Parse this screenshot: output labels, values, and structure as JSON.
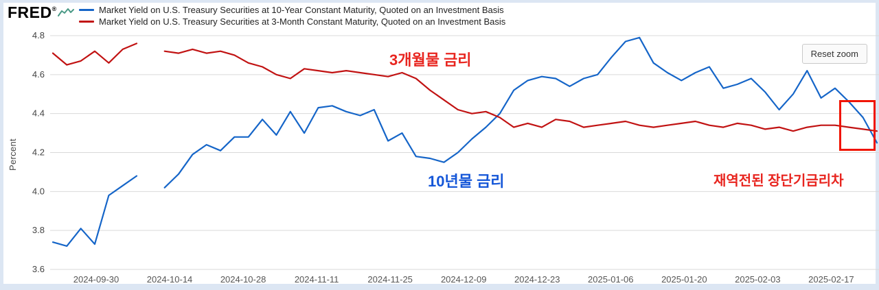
{
  "logo": {
    "text": "FRED",
    "registered": "®"
  },
  "legend": {
    "items": [
      {
        "label": "Market Yield on U.S. Treasury Securities at 10-Year Constant Maturity, Quoted on an Investment Basis",
        "color": "#1565c8"
      },
      {
        "label": "Market Yield on U.S. Treasury Securities at 3-Month Constant Maturity, Quoted on an Investment Basis",
        "color": "#c11212"
      }
    ]
  },
  "controls": {
    "reset_zoom_label": "Reset zoom"
  },
  "annotations": {
    "three_month": {
      "text": "3개월물 금리",
      "color": "#e8251f"
    },
    "ten_year": {
      "text": "10년물 금리",
      "color": "#1456d8"
    },
    "reinverted": {
      "text": "재역전된 장단기금리차",
      "color": "#e8251f"
    },
    "highlight_color": "#f01400"
  },
  "chart_data": {
    "type": "line",
    "title": "",
    "xlabel": "",
    "ylabel": "Percent",
    "ylim": [
      3.6,
      4.8
    ],
    "yticks": [
      3.6,
      3.8,
      4.0,
      4.2,
      4.4,
      4.6,
      4.8
    ],
    "grid": "horizontal",
    "legend_position": "top-left",
    "x_tick_labels": [
      "2024-09-30",
      "2024-10-14",
      "2024-10-28",
      "2024-11-11",
      "2024-11-25",
      "2024-12-09",
      "2024-12-23",
      "2025-01-06",
      "2025-01-20",
      "2025-02-03",
      "2025-02-17"
    ],
    "series": [
      {
        "name": "Market Yield on U.S. Treasury Securities at 10-Year Constant Maturity, Quoted on an Investment Basis",
        "color": "#1565c8",
        "values": [
          3.74,
          3.72,
          3.81,
          3.73,
          3.98,
          4.03,
          4.08,
          null,
          4.02,
          4.09,
          4.19,
          4.24,
          4.21,
          4.28,
          4.28,
          4.37,
          4.29,
          4.41,
          4.3,
          4.43,
          4.44,
          4.41,
          4.39,
          4.42,
          4.26,
          4.3,
          4.18,
          4.17,
          4.15,
          4.2,
          4.27,
          4.33,
          4.4,
          4.52,
          4.57,
          4.59,
          4.58,
          4.54,
          4.58,
          4.6,
          4.69,
          4.77,
          4.79,
          4.66,
          4.61,
          4.57,
          4.61,
          4.64,
          4.53,
          4.55,
          4.58,
          4.51,
          4.42,
          4.5,
          4.62,
          4.48,
          4.53,
          4.46,
          4.38,
          4.25
        ]
      },
      {
        "name": "Market Yield on U.S. Treasury Securities at 3-Month Constant Maturity, Quoted on an Investment Basis",
        "color": "#c11212",
        "values": [
          4.71,
          4.65,
          4.67,
          4.72,
          4.66,
          4.73,
          4.76,
          null,
          4.72,
          4.71,
          4.73,
          4.71,
          4.72,
          4.7,
          4.66,
          4.64,
          4.6,
          4.58,
          4.63,
          4.62,
          4.61,
          4.62,
          4.61,
          4.6,
          4.59,
          4.61,
          4.58,
          4.52,
          4.47,
          4.42,
          4.4,
          4.41,
          4.38,
          4.33,
          4.35,
          4.33,
          4.37,
          4.36,
          4.33,
          4.34,
          4.35,
          4.36,
          4.34,
          4.33,
          4.34,
          4.35,
          4.36,
          4.34,
          4.33,
          4.35,
          4.34,
          4.32,
          4.33,
          4.31,
          4.33,
          4.34,
          4.34,
          4.33,
          4.32,
          4.31
        ]
      }
    ]
  }
}
